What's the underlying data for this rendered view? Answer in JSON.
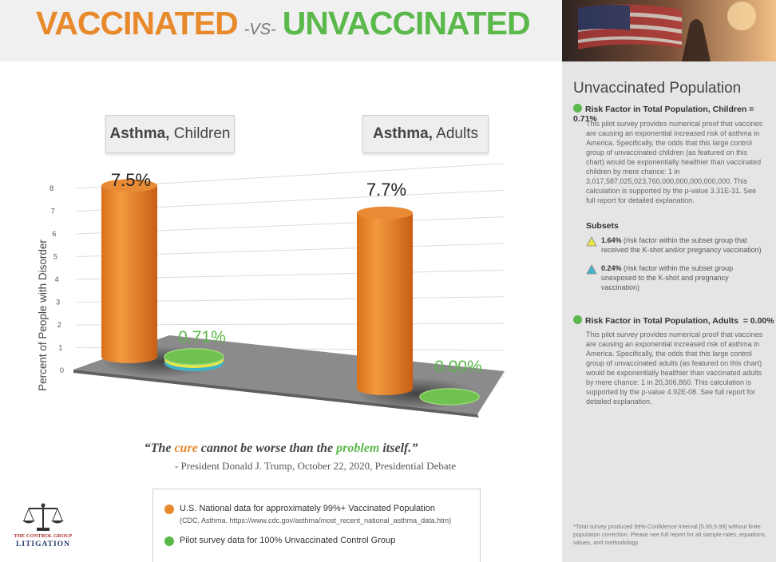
{
  "header": {
    "title_vaccinated": "VACCINATED",
    "title_vs": "-VS-",
    "title_unvaccinated": "UNVACCINATED"
  },
  "colors": {
    "orange": "#e8892c",
    "green": "#5bb84a",
    "panel_bg": "#e5e5e6"
  },
  "chart_data": {
    "type": "bar",
    "categories": [
      "Asthma, Children",
      "Asthma, Adults"
    ],
    "category_parts": [
      {
        "bold": "Asthma,",
        "rest": " Children"
      },
      {
        "bold": "Asthma,",
        "rest": " Adults"
      }
    ],
    "series": [
      {
        "values": [
          7.5,
          7.7
        ],
        "labels": [
          "7.5%",
          "7.7%"
        ],
        "color": "#e8892c"
      },
      {
        "values": [
          0.71,
          0.0
        ],
        "labels": [
          "0.71%",
          "0.00%"
        ],
        "color": "#5bb84a"
      }
    ],
    "ylabel": "Percent of People with Disorder",
    "yticks": [
      "0",
      "1",
      "2",
      "3",
      "4",
      "5",
      "6",
      "7",
      "8"
    ],
    "ylim": [
      0,
      8
    ]
  },
  "quote": {
    "open": "“The ",
    "cure": "cure",
    "middle": " cannot be worse than the ",
    "problem": "problem",
    "end": " itself.”",
    "attribution": "- President Donald J. Trump, October 22, 2020, Presidential Debate"
  },
  "legend": {
    "vaccinated_label": "U.S. National data for approximately 99%+ Vaccinated Population",
    "vaccinated_source": "(CDC, Asthma. https://www.cdc.gov/asthma/most_recent_national_asthma_data.htm)",
    "unvaccinated_label": "Pilot survey data for 100% Unvaccinated Control Group"
  },
  "logo": {
    "line1": "THE CONTROL GROUP",
    "line2": "LITIGATION"
  },
  "panel": {
    "title": "Unvaccinated Population",
    "children_heading": "Risk Factor in Total Population, Children = 0.71%",
    "children_text": "This pilot survey provides numerical proof that vaccines are causing an exponential increased risk of asthma in America. Specifically, the odds that this large control group of unvaccinated children (as featured on this chart) would be exponentially healthier than vaccinated children by mere chance: 1 in 3,017,587,025,023,760,000,000,000,000,000. This calculation is supported by the p-value 3.31E-31. See full report for detailed explanation.",
    "subsets_label": "Subsets",
    "subset1_value": "1.64%",
    "subset1_text": " (risk factor within the subset group that received the K-shot and/or pregnancy vaccination)",
    "subset2_value": "0.24%",
    "subset2_text": " (risk factor within the subset group unexposed to the K-shot and pregnancy vaccination)",
    "adults_heading": "Risk Factor in Total Population, Adults  = 0.00%",
    "adults_text": "This pilot survey provides numerical proof that vaccines are causing an exponential increased risk of asthma in America. Specifically, the odds that this large control group of unvaccinated adults (as featured on this chart) would be exponentially healthier than vaccinated adults by mere chance: 1 in 20,306,860. This calculation is supported by the p-value 4.92E-08. See full report for detailed explanation.",
    "footnote": "*Total survey produced 99% Confidence Interval [5.95,5.99] without finite population correction. Please see full report for all sample rates, equations, values, and methodology."
  }
}
